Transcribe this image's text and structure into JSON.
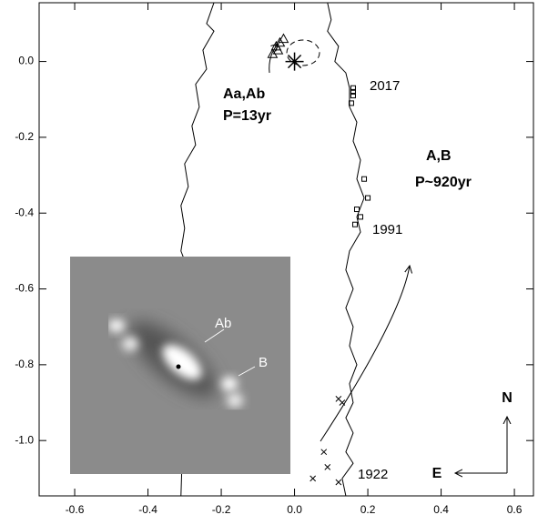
{
  "chart_data": {
    "type": "scatter",
    "xlim": [
      -0.697,
      0.652
    ],
    "ylim": [
      -1.146,
      0.155
    ],
    "xticks": [
      -0.6,
      -0.4,
      -0.2,
      {
        "value": 0,
        "label": "0.0"
      },
      0.2,
      0.4,
      0.6
    ],
    "yticks": [
      {
        "value": 0,
        "label": "0.0"
      },
      -0.2,
      -0.4,
      -0.6,
      -0.8,
      {
        "value": -1,
        "label": "-1.0"
      }
    ],
    "series": [
      {
        "marker": "line",
        "color": "#000",
        "x": [
          -0.22,
          -0.24,
          -0.22,
          -0.25,
          -0.24,
          -0.27,
          -0.26,
          -0.28,
          -0.27,
          -0.3,
          -0.29,
          -0.31,
          -0.3,
          -0.31,
          -0.29,
          -0.31
        ],
        "y": [
          0.155,
          0.1,
          0.08,
          0.03,
          -0.02,
          -0.06,
          -0.12,
          -0.17,
          -0.22,
          -0.27,
          -0.33,
          -0.38,
          -0.44,
          -0.5,
          -0.55,
          -1.146
        ]
      },
      {
        "marker": "line",
        "color": "#000",
        "x": [
          0.09,
          0.1,
          0.09,
          0.12,
          0.11,
          0.14,
          0.15,
          0.15,
          0.17,
          0.16,
          0.18,
          0.17,
          0.19,
          0.17,
          0.18,
          0.15,
          0.14,
          0.16,
          0.14,
          0.16,
          0.15,
          0.17,
          0.15,
          0.16,
          0.14,
          0.16,
          0.14,
          0.16,
          0.13,
          0.14
        ],
        "y": [
          0.155,
          0.11,
          0.08,
          0.04,
          0.0,
          -0.03,
          -0.07,
          -0.12,
          -0.16,
          -0.21,
          -0.26,
          -0.31,
          -0.36,
          -0.41,
          -0.45,
          -0.5,
          -0.55,
          -0.6,
          -0.65,
          -0.7,
          -0.75,
          -0.8,
          -0.85,
          -0.9,
          -0.94,
          -0.98,
          -1.03,
          -1.06,
          -1.1,
          -1.146
        ]
      },
      {
        "marker": "square",
        "color": "#000",
        "x": [
          0.16,
          0.16,
          0.16,
          0.155,
          0.19,
          0.2,
          0.17,
          0.18,
          0.165
        ],
        "y": [
          -0.07,
          -0.08,
          -0.09,
          -0.11,
          -0.31,
          -0.36,
          -0.39,
          -0.41,
          -0.43
        ]
      },
      {
        "marker": "cross",
        "color": "#000",
        "x": [
          0.12,
          0.13,
          0.08,
          0.09,
          0.05,
          0.12
        ],
        "y": [
          -0.89,
          -0.9,
          -1.03,
          -1.07,
          -1.1,
          -1.11
        ]
      },
      {
        "marker": "triangle",
        "color": "#000",
        "x": [
          -0.05,
          -0.04,
          -0.03,
          -0.06,
          -0.045
        ],
        "y": [
          0.04,
          0.05,
          0.06,
          0.02,
          0.03
        ]
      },
      {
        "marker": "asterisk",
        "color": "#000",
        "x": [
          0.0
        ],
        "y": [
          0.0
        ]
      }
    ],
    "annotations": [
      "Aa,Ab",
      "P=13yr",
      "2017",
      "A,B",
      "P~920yr",
      "1991",
      "1922"
    ],
    "inset_labels": [
      "Ab",
      "B"
    ],
    "compass": [
      "N",
      "E"
    ]
  }
}
